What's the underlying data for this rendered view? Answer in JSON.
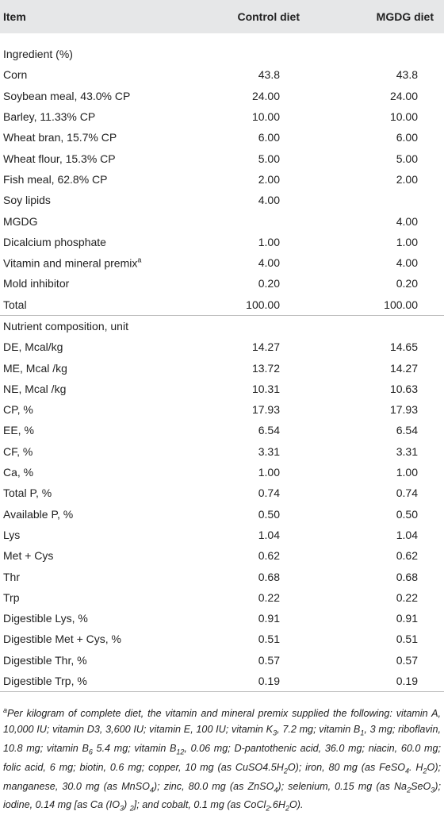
{
  "header": [
    "Item",
    "Control diet",
    "MGDG diet"
  ],
  "sections": [
    {
      "title": "Ingredient (%)",
      "rows": [
        {
          "item": "Corn",
          "control": "43.8",
          "mgdg": "43.8"
        },
        {
          "item": "Soybean meal, 43.0% CP",
          "control": "24.00",
          "mgdg": "24.00"
        },
        {
          "item": "Barley, 11.33% CP",
          "control": "10.00",
          "mgdg": "10.00"
        },
        {
          "item": "Wheat bran, 15.7% CP",
          "control": "6.00",
          "mgdg": "6.00"
        },
        {
          "item": "Wheat flour, 15.3% CP",
          "control": "5.00",
          "mgdg": "5.00"
        },
        {
          "item": "Fish meal, 62.8% CP",
          "control": "2.00",
          "mgdg": "2.00"
        },
        {
          "item": "Soy lipids",
          "control": "4.00",
          "mgdg": null
        },
        {
          "item": "MGDG",
          "control": null,
          "mgdg": "4.00"
        },
        {
          "item": "Dicalcium phosphate",
          "control": "1.00",
          "mgdg": "1.00"
        },
        {
          "item": "Vitamin and mineral premix",
          "ref": "a",
          "control": "4.00",
          "mgdg": "4.00"
        },
        {
          "item": "Mold inhibitor",
          "control": "0.20",
          "mgdg": "0.20"
        },
        {
          "item": "Total",
          "control": "100.00",
          "mgdg": "100.00"
        }
      ]
    },
    {
      "title": "Nutrient composition, unit",
      "rows": [
        {
          "item": "DE, Mcal/kg",
          "control": "14.27",
          "mgdg": "14.65"
        },
        {
          "item": "ME, Mcal /kg",
          "control": "13.72",
          "mgdg": "14.27"
        },
        {
          "item": "NE, Mcal /kg",
          "control": "10.31",
          "mgdg": "10.63"
        },
        {
          "item": "CP, %",
          "control": "17.93",
          "mgdg": "17.93"
        },
        {
          "item": "EE, %",
          "control": "6.54",
          "mgdg": "6.54"
        },
        {
          "item": "CF, %",
          "control": "3.31",
          "mgdg": "3.31"
        },
        {
          "item": "Ca, %",
          "control": "1.00",
          "mgdg": "1.00"
        },
        {
          "item": "Total P, %",
          "control": "0.74",
          "mgdg": "0.74"
        },
        {
          "item": "Available P, %",
          "control": "0.50",
          "mgdg": "0.50"
        },
        {
          "item": "Lys",
          "control": "1.04",
          "mgdg": "1.04"
        },
        {
          "item": "Met + Cys",
          "control": "0.62",
          "mgdg": "0.62"
        },
        {
          "item": "Thr",
          "control": "0.68",
          "mgdg": "0.68"
        },
        {
          "item": "Trp",
          "control": "0.22",
          "mgdg": "0.22"
        },
        {
          "item": "Digestible Lys, %",
          "control": "0.91",
          "mgdg": "0.91"
        },
        {
          "item": "Digestible Met + Cys, %",
          "control": "0.51",
          "mgdg": "0.51"
        },
        {
          "item": "Digestible Thr, %",
          "control": "0.57",
          "mgdg": "0.57"
        },
        {
          "item": "Digestible Trp, %",
          "control": "0.19",
          "mgdg": "0.19"
        }
      ]
    }
  ],
  "footnote": {
    "marker": "a",
    "runs": [
      "Per kilogram of complete diet, the vitamin and mineral premix supplied the following: vitamin A, 10,000 IU; vitamin D3, 3,600 IU; vitamin E, 100 IU; vitamin K",
      "3",
      ", 7.2 mg; vitamin B",
      "1",
      ", 3 mg; riboflavin, 10.8 mg; vitamin B",
      "6",
      " 5.4 mg; vitamin B",
      "12",
      ", 0.06 mg; D-pantothenic acid, 36.0 mg; niacin, 60.0 mg; folic acid, 6 mg; biotin, 0.6 mg; copper, 10 mg (as CuSO4.5H",
      "2",
      "O); iron, 80 mg (as FeSO",
      "4",
      ". H",
      "2",
      "O); manganese, 30.0 mg (as MnSO",
      "4",
      "); zinc, 80.0 mg (as ZnSO",
      "4",
      "); selenium, 0.15 mg (as Na",
      "2",
      "SeO",
      "3",
      "); iodine, 0.14 mg [as Ca (IO",
      "3",
      ") ",
      "2",
      "]; and cobalt, 0.1 mg (as CoCl",
      "2",
      ".6H",
      "2",
      "O)."
    ]
  }
}
